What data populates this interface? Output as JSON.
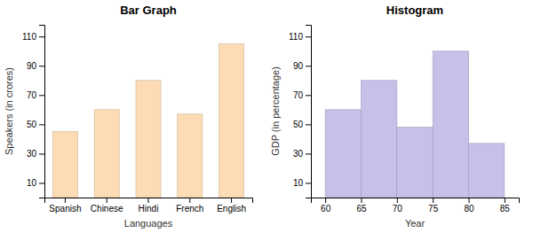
{
  "chart_data": [
    {
      "type": "bar",
      "title": "Bar Graph",
      "categories": [
        "Spanish",
        "Chinese",
        "Hindi",
        "French",
        "English"
      ],
      "values": [
        45,
        60,
        80,
        57,
        105
      ],
      "color": "#FDDCB5",
      "xlabel": "Languages",
      "ylabel": "Speakers (in crores)",
      "ylim": [
        0,
        118
      ],
      "yticks": [
        10,
        30,
        50,
        70,
        90,
        110
      ]
    },
    {
      "type": "histogram",
      "title": "Histogram",
      "bins": [
        60,
        65,
        70,
        75,
        80,
        85
      ],
      "values": [
        60,
        80,
        48,
        100,
        37
      ],
      "color": "#C8C0E8",
      "xlabel": "Year",
      "ylabel": "GDP (in percentage)",
      "xlim": [
        58,
        87
      ],
      "xticks": [
        60,
        65,
        70,
        75,
        80,
        85
      ],
      "ylim": [
        0,
        118
      ],
      "yticks": [
        10,
        30,
        50,
        70,
        90,
        110
      ]
    }
  ]
}
